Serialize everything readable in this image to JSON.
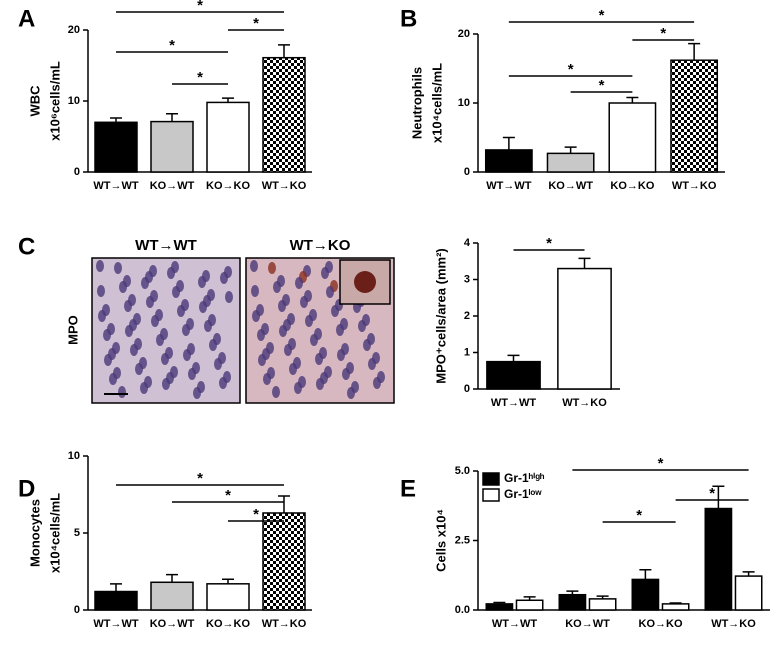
{
  "chart_data": [
    {
      "type": "bar",
      "panel": "A",
      "ylabel": [
        "WBC",
        "x10⁶cells/mL"
      ],
      "categories": [
        "WT→WT",
        "KO→WT",
        "KO→KO",
        "WT→KO"
      ],
      "values": [
        7,
        7.1,
        9.8,
        16.1
      ],
      "errors": [
        0.6,
        1.1,
        0.6,
        1.8
      ],
      "colors": [
        "#000000",
        "#c8c8c8",
        "#ffffff",
        "checkered"
      ],
      "ylim": [
        0,
        20
      ],
      "yticks": [
        0,
        10,
        20
      ],
      "comparisons": [
        {
          "pair": [
            0,
            3
          ],
          "label": "*"
        },
        {
          "pair": [
            2,
            3
          ],
          "label": "*"
        },
        {
          "pair": [
            0,
            2
          ],
          "label": "*"
        },
        {
          "pair": [
            1,
            2
          ],
          "label": "*"
        }
      ]
    },
    {
      "type": "bar",
      "panel": "B",
      "ylabel": [
        "Neutrophils",
        "x10⁴cells/mL"
      ],
      "categories": [
        "WT→WT",
        "KO→WT",
        "KO→KO",
        "WT→KO"
      ],
      "values": [
        3.2,
        2.7,
        10,
        16.2
      ],
      "errors": [
        1.8,
        0.9,
        0.8,
        2.4
      ],
      "colors": [
        "#000000",
        "#c8c8c8",
        "#ffffff",
        "checkered"
      ],
      "ylim": [
        0,
        20
      ],
      "yticks": [
        0,
        10,
        20
      ],
      "comparisons": [
        {
          "pair": [
            0,
            3
          ],
          "label": "*"
        },
        {
          "pair": [
            2,
            3
          ],
          "label": "*"
        },
        {
          "pair": [
            0,
            2
          ],
          "label": "*"
        },
        {
          "pair": [
            1,
            2
          ],
          "label": "*"
        }
      ]
    },
    {
      "type": "bar",
      "ylabel": [
        "MPO⁺cells/area (mm²)"
      ],
      "categories": [
        "WT→WT",
        "WT→KO"
      ],
      "values": [
        0.75,
        3.3
      ],
      "errors": [
        0.17,
        0.28
      ],
      "colors": [
        "#000000",
        "#ffffff"
      ],
      "ylim": [
        0,
        4
      ],
      "yticks": [
        0,
        1,
        2,
        3,
        4
      ],
      "comparisons": [
        {
          "pair": [
            0,
            1
          ],
          "label": "*"
        }
      ]
    },
    {
      "type": "bar",
      "panel": "D",
      "ylabel": [
        "Monocytes",
        "x10⁴cells/mL"
      ],
      "categories": [
        "WT→WT",
        "KO→WT",
        "KO→KO",
        "WT→KO"
      ],
      "values": [
        1.2,
        1.8,
        1.7,
        6.3
      ],
      "errors": [
        0.5,
        0.5,
        0.3,
        1.1
      ],
      "colors": [
        "#000000",
        "#c8c8c8",
        "#ffffff",
        "checkered"
      ],
      "ylim": [
        0,
        10
      ],
      "yticks": [
        0,
        5,
        10
      ],
      "comparisons": [
        {
          "pair": [
            0,
            3
          ],
          "label": "*"
        },
        {
          "pair": [
            1,
            3
          ],
          "label": "*"
        },
        {
          "pair": [
            2,
            3
          ],
          "label": "*"
        }
      ]
    },
    {
      "type": "grouped_bar",
      "panel": "E",
      "ylabel": [
        "Cells x10⁴"
      ],
      "categories": [
        "WT→WT",
        "KO→WT",
        "KO→KO",
        "WT→KO"
      ],
      "series": [
        {
          "name": "Gr-1ʰⁱᵍʰ",
          "color": "#000000",
          "values": [
            0.22,
            0.55,
            1.1,
            3.65
          ],
          "errors": [
            0.05,
            0.13,
            0.35,
            0.8
          ]
        },
        {
          "name": "Gr-1ˡᵒʷ",
          "color": "#ffffff",
          "values": [
            0.35,
            0.4,
            0.22,
            1.22
          ],
          "errors": [
            0.12,
            0.1,
            0.03,
            0.15
          ]
        }
      ],
      "ylim": [
        0,
        5
      ],
      "yticks": [
        {
          "value": 0,
          "label": "0.0"
        },
        {
          "value": 2.5,
          "label": "2.5"
        },
        {
          "value": 5,
          "label": "5.0"
        }
      ],
      "legend": "upper left",
      "comparisons": [
        {
          "pair": [
            [
              1,
              0
            ],
            [
              3,
              1
            ]
          ],
          "label": "*"
        },
        {
          "pair": [
            [
              2,
              1
            ],
            [
              3,
              1
            ]
          ],
          "label": "*"
        },
        {
          "pair": [
            [
              1,
              1
            ],
            [
              2,
              1
            ]
          ],
          "label": "*"
        }
      ]
    }
  ],
  "images": {
    "panel": "C",
    "titles": [
      "WT→WT",
      "WT→KO"
    ],
    "stain": "MPO"
  }
}
